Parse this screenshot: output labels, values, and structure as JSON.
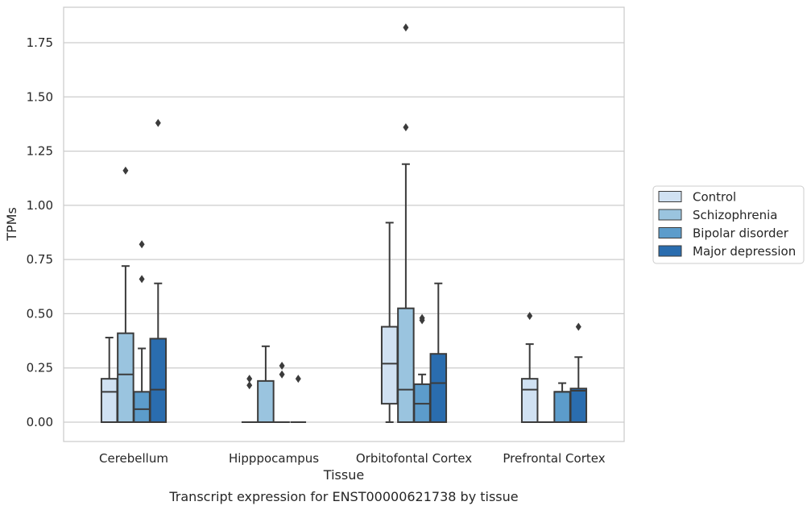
{
  "chart_data": {
    "type": "box",
    "title": "",
    "caption": "Transcript expression for ENST00000621738 by tissue",
    "xlabel": "Tissue",
    "ylabel": "TPMs",
    "ylim": [
      -0.09,
      1.92
    ],
    "yticks": [
      0.0,
      0.25,
      0.5,
      0.75,
      1.0,
      1.25,
      1.5,
      1.75
    ],
    "ytick_labels": [
      "0.00",
      "0.25",
      "0.50",
      "0.75",
      "1.00",
      "1.25",
      "1.50",
      "1.75"
    ],
    "grid": "horizontal",
    "legend_position": "right",
    "categories": [
      "Cerebellum",
      "Hipppocampus",
      "Orbitofontal Cortex",
      "Prefrontal Cortex"
    ],
    "series": [
      {
        "name": "Control",
        "color": "#d0e1f2",
        "boxes": [
          {
            "whislo": 0.0,
            "q1": 0.0,
            "med": 0.14,
            "q3": 0.2,
            "whishi": 0.39,
            "fliers": []
          },
          {
            "whislo": 0.0,
            "q1": 0.0,
            "med": 0.0,
            "q3": 0.0,
            "whishi": 0.0,
            "fliers": [
              0.17,
              0.2
            ]
          },
          {
            "whislo": 0.0,
            "q1": 0.085,
            "med": 0.27,
            "q3": 0.44,
            "whishi": 0.92,
            "fliers": []
          },
          {
            "whislo": 0.0,
            "q1": 0.0,
            "med": 0.15,
            "q3": 0.2,
            "whishi": 0.36,
            "fliers": [
              0.49
            ]
          }
        ]
      },
      {
        "name": "Schizophrenia",
        "color": "#9ac4df",
        "boxes": [
          {
            "whislo": 0.0,
            "q1": 0.0,
            "med": 0.22,
            "q3": 0.41,
            "whishi": 0.72,
            "fliers": [
              1.16
            ]
          },
          {
            "whislo": 0.0,
            "q1": 0.0,
            "med": 0.0,
            "q3": 0.19,
            "whishi": 0.35,
            "fliers": []
          },
          {
            "whislo": 0.0,
            "q1": 0.0,
            "med": 0.15,
            "q3": 0.525,
            "whishi": 1.19,
            "fliers": [
              1.36,
              1.82
            ]
          },
          {
            "whislo": 0.0,
            "q1": 0.0,
            "med": 0.0,
            "q3": 0.0,
            "whishi": 0.0,
            "fliers": []
          }
        ]
      },
      {
        "name": "Bipolar disorder",
        "color": "#5c9ccb",
        "boxes": [
          {
            "whislo": 0.0,
            "q1": 0.0,
            "med": 0.06,
            "q3": 0.14,
            "whishi": 0.34,
            "fliers": [
              0.66,
              0.82
            ]
          },
          {
            "whislo": 0.0,
            "q1": 0.0,
            "med": 0.0,
            "q3": 0.0,
            "whishi": 0.0,
            "fliers": [
              0.22,
              0.26
            ]
          },
          {
            "whislo": 0.0,
            "q1": 0.0,
            "med": 0.085,
            "q3": 0.175,
            "whishi": 0.22,
            "fliers": [
              0.47,
              0.48
            ]
          },
          {
            "whislo": 0.0,
            "q1": 0.0,
            "med": 0.14,
            "q3": 0.14,
            "whishi": 0.18,
            "fliers": []
          }
        ]
      },
      {
        "name": "Major depression",
        "color": "#2a6daf",
        "boxes": [
          {
            "whislo": 0.0,
            "q1": 0.0,
            "med": 0.15,
            "q3": 0.385,
            "whishi": 0.64,
            "fliers": [
              1.38
            ]
          },
          {
            "whislo": 0.0,
            "q1": 0.0,
            "med": 0.0,
            "q3": 0.0,
            "whishi": 0.0,
            "fliers": [
              0.2
            ]
          },
          {
            "whislo": 0.0,
            "q1": 0.0,
            "med": 0.18,
            "q3": 0.315,
            "whishi": 0.64,
            "fliers": []
          },
          {
            "whislo": 0.0,
            "q1": 0.0,
            "med": 0.145,
            "q3": 0.155,
            "whishi": 0.3,
            "fliers": [
              0.44
            ]
          }
        ]
      }
    ]
  }
}
